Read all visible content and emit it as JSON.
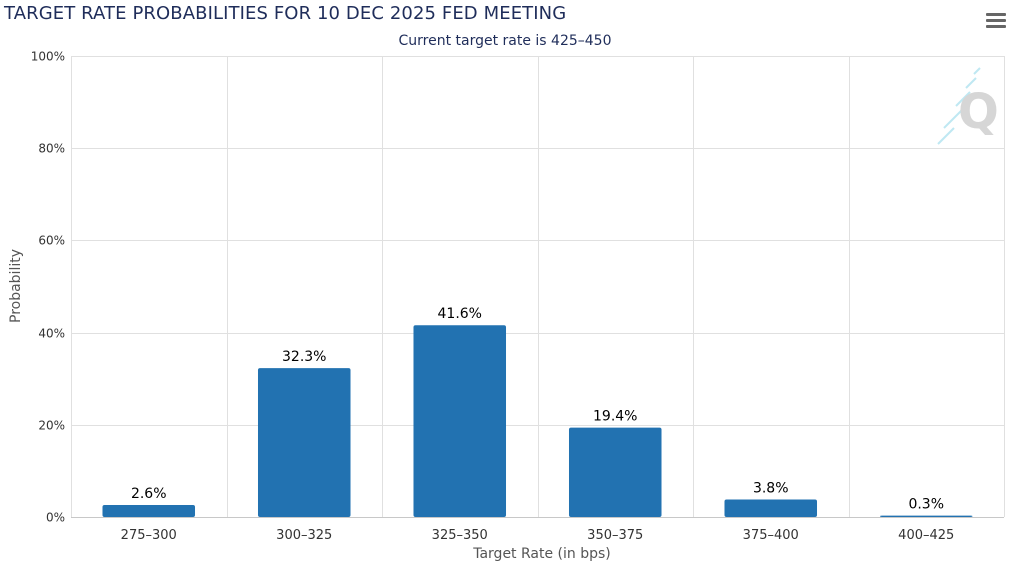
{
  "chart": {
    "title": "TARGET RATE PROBABILITIES FOR 10 DEC 2025 FED MEETING",
    "subtitle": "Current target rate is 425–450",
    "menu_icon": "hamburger-menu-icon",
    "watermark_icon": "q-logo-watermark"
  },
  "colors": {
    "bar": "#2272b1",
    "grid": "#e0e0e0",
    "axis": "#c8c8c8",
    "title": "#1f2d5a"
  },
  "chart_data": {
    "type": "bar",
    "title": "TARGET RATE PROBABILITIES FOR 10 DEC 2025 FED MEETING",
    "subtitle": "Current target rate is 425–450",
    "xlabel": "Target Rate (in bps)",
    "ylabel": "Probability",
    "categories": [
      "275–300",
      "300–325",
      "325–350",
      "350–375",
      "375–400",
      "400–425"
    ],
    "values": [
      2.6,
      32.3,
      41.6,
      19.4,
      3.8,
      0.3
    ],
    "data_labels": [
      "2.6%",
      "32.3%",
      "41.6%",
      "19.4%",
      "3.8%",
      "0.3%"
    ],
    "ylim": [
      0,
      100
    ],
    "yticks": [
      0,
      20,
      40,
      60,
      80,
      100
    ],
    "ytick_labels": [
      "0%",
      "20%",
      "40%",
      "60%",
      "80%",
      "100%"
    ],
    "grid": true,
    "legend": "none"
  }
}
